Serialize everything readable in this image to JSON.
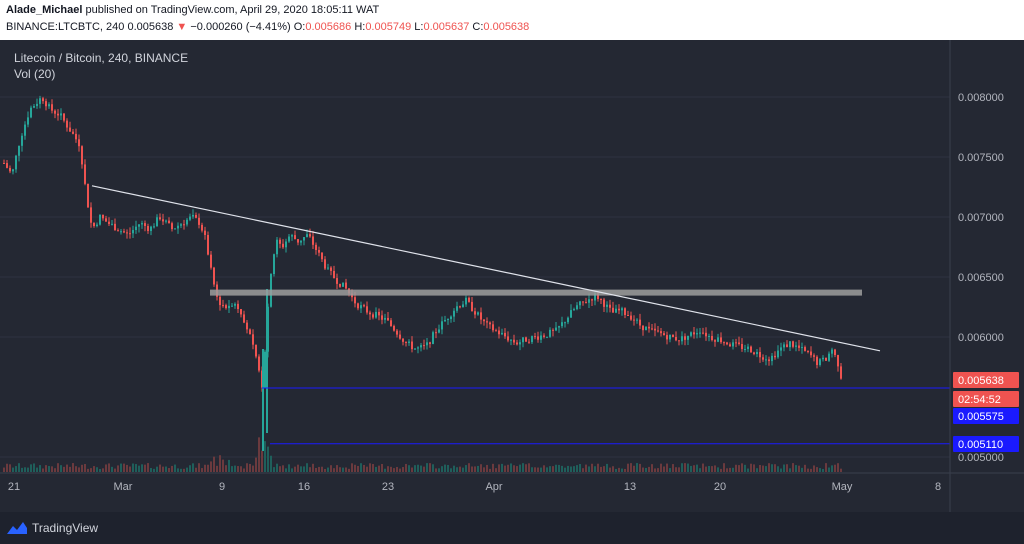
{
  "header": {
    "author": "Alade_Michael",
    "published_text": "published on TradingView.com, April 29, 2020 18:05:11 WAT",
    "symbol_line_prefix": "BINANCE:LTCBTC, 240",
    "last_price": "0.005638",
    "change": "−0.000260 (−4.41%)",
    "o_label": "O:",
    "o_value": "0.005686",
    "h_label": "H:",
    "h_value": "0.005749",
    "l_label": "L:",
    "l_value": "0.005637",
    "c_label": "C:",
    "c_value": "0.005638",
    "down_arrow": "▼"
  },
  "legend": {
    "title": "Litecoin / Bitcoin, 240, BINANCE",
    "volume": "Vol (20)"
  },
  "price_axis": {
    "ticks": [
      "0.008000",
      "0.007500",
      "0.007000",
      "0.006500",
      "0.006000",
      "0.005000"
    ],
    "current_price_label": "0.005638",
    "countdown_label": "02:54:52",
    "level1_label": "0.005575",
    "level2_label": "0.005110"
  },
  "time_axis": {
    "labels": [
      "21",
      "Mar",
      "9",
      "16",
      "23",
      "Apr",
      "13",
      "20",
      "May",
      "8"
    ]
  },
  "footer": {
    "brand": "TradingView"
  },
  "colors": {
    "bg": "#242833",
    "up": "#26a69a",
    "down": "#ef5350",
    "trendline": "#e0e3eb",
    "resistance": "#9e9e9e",
    "level_line": "#1a1aff",
    "level_label_bg": "#1a1aff",
    "price_label_bg": "#ef5350"
  },
  "chart_data": {
    "type": "candlestick",
    "symbol": "LTCBTC",
    "timeframe": "240",
    "exchange": "BINANCE",
    "yrange": [
      0.0048,
      0.0084
    ],
    "x": [
      "Feb 19",
      "Feb 21",
      "Feb 24",
      "Feb 27",
      "Mar 1",
      "Mar 4",
      "Mar 7",
      "Mar 9",
      "Mar 11",
      "Mar 12",
      "Mar 13",
      "Mar 14",
      "Mar 16",
      "Mar 18",
      "Mar 20",
      "Mar 23",
      "Mar 25",
      "Mar 27",
      "Mar 29",
      "Apr 1",
      "Apr 3",
      "Apr 5",
      "Apr 7",
      "Apr 9",
      "Apr 11",
      "Apr 13",
      "Apr 15",
      "Apr 17",
      "Apr 20",
      "Apr 22",
      "Apr 24",
      "Apr 26",
      "Apr 28",
      "Apr 29"
    ],
    "close": [
      0.00745,
      0.00795,
      0.0078,
      0.007,
      0.0069,
      0.00695,
      0.007,
      0.0068,
      0.0062,
      0.0056,
      0.0067,
      0.0068,
      0.00685,
      0.0065,
      0.0064,
      0.00615,
      0.006,
      0.0059,
      0.0062,
      0.0063,
      0.006,
      0.0059,
      0.006,
      0.0063,
      0.00635,
      0.0062,
      0.00605,
      0.006,
      0.006,
      0.00595,
      0.00585,
      0.0059,
      0.00575,
      0.005638
    ],
    "trendline": {
      "start": [
        "Feb 25",
        0.00726
      ],
      "end": [
        "May 1",
        0.00588
      ]
    },
    "resistance_zone": {
      "level": 0.00637,
      "start": "Mar 8",
      "end": "May 2"
    },
    "support_levels": [
      0.005575,
      0.00511
    ]
  }
}
